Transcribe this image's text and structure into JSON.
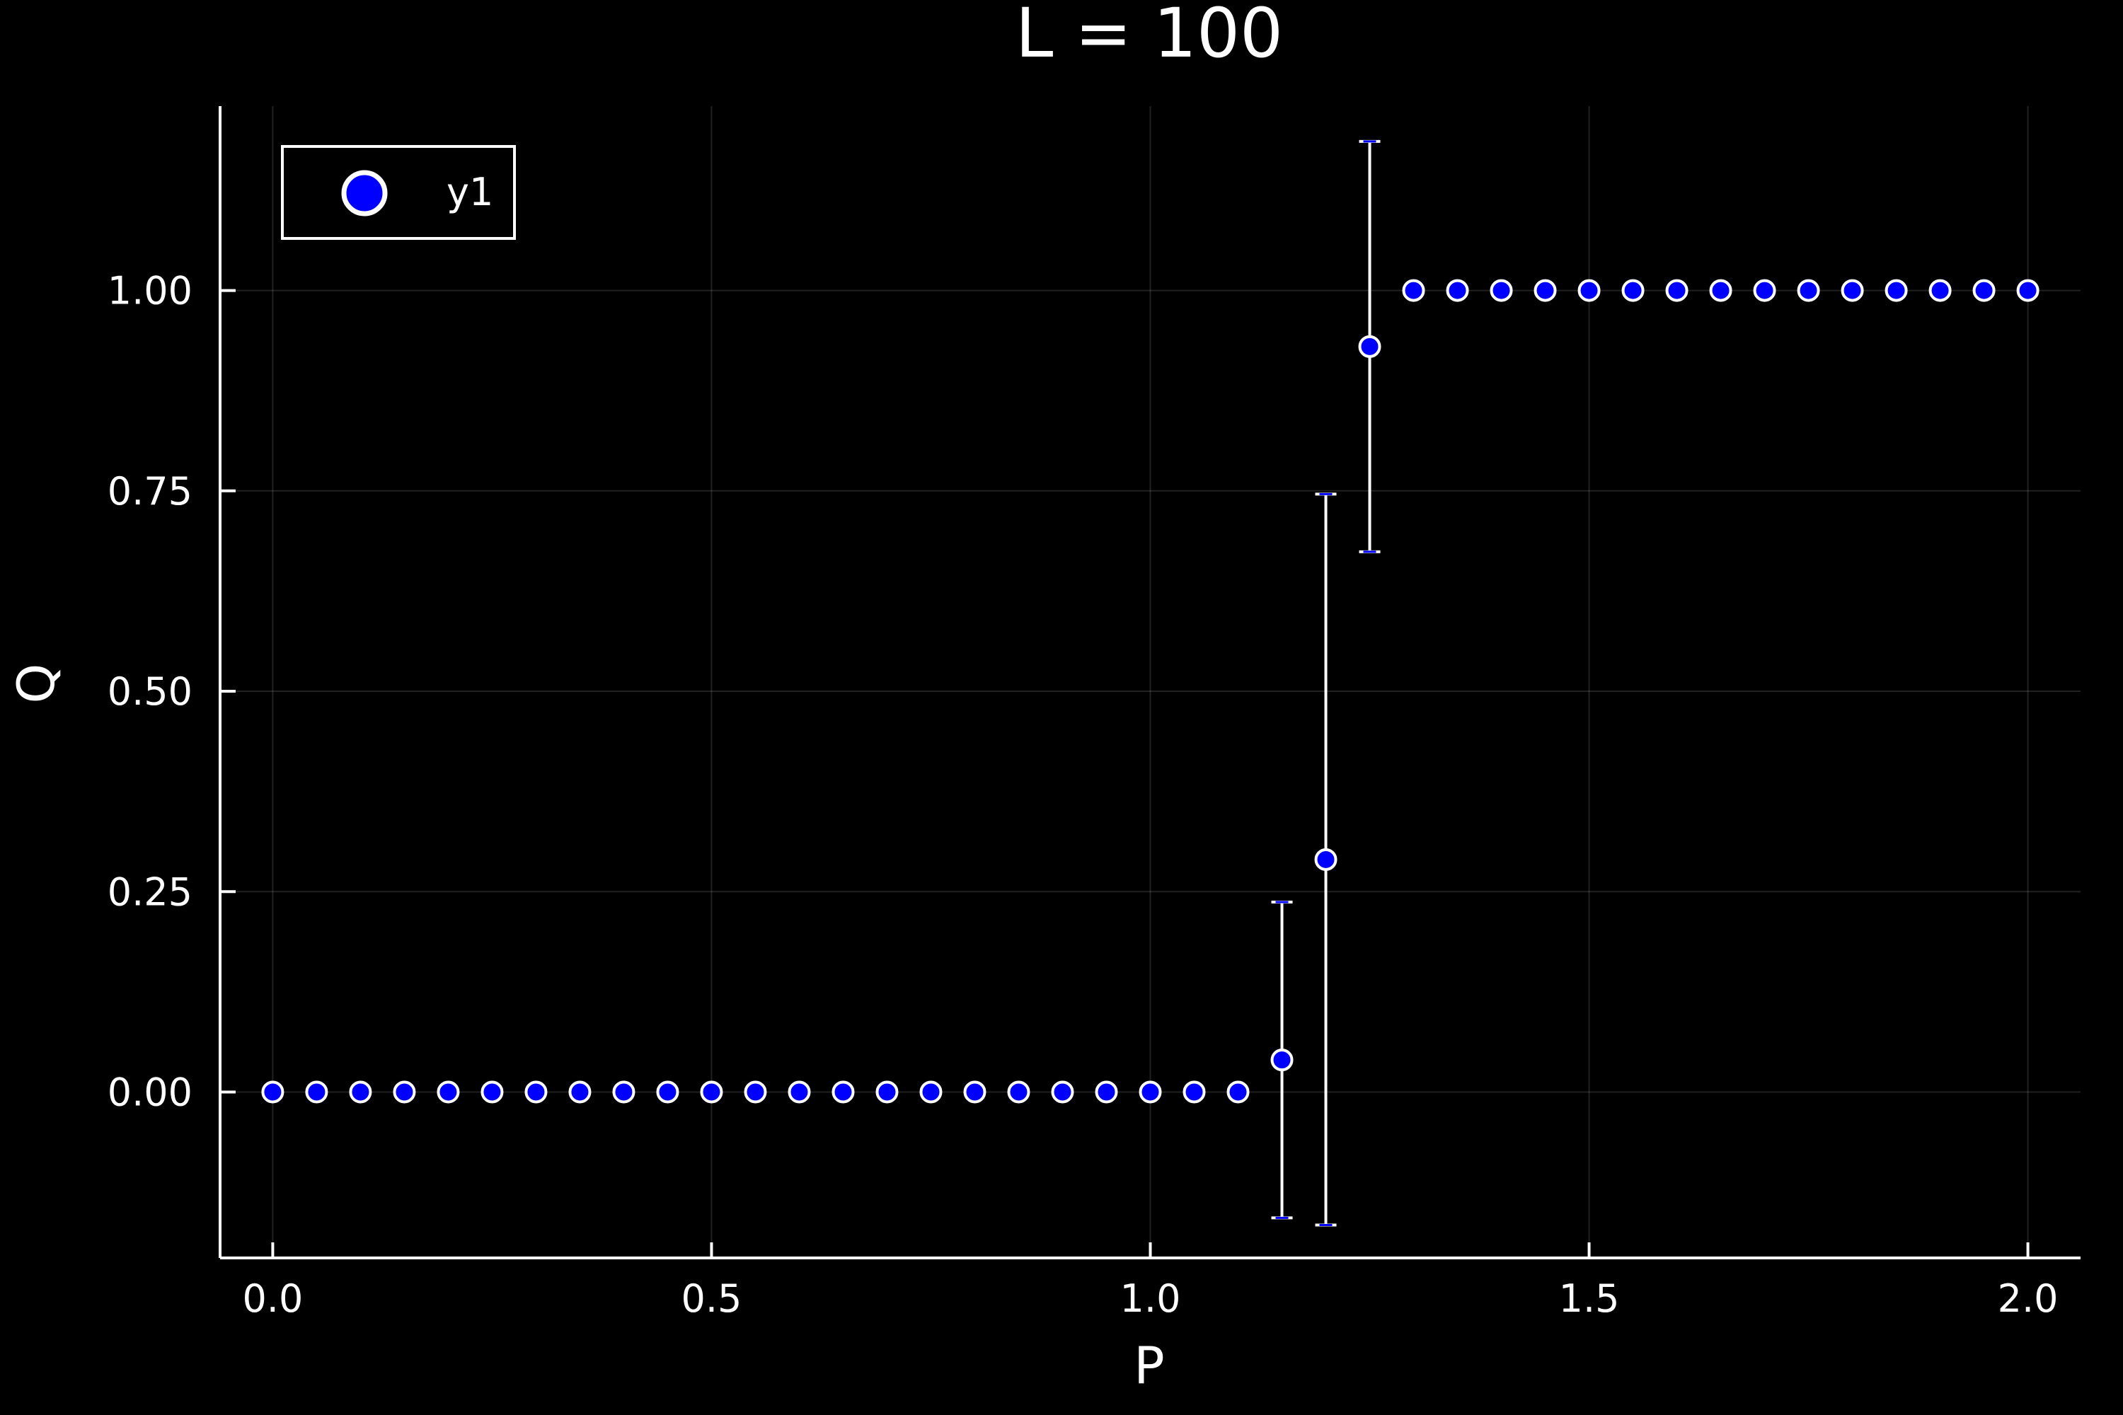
{
  "chart_data": {
    "type": "scatter",
    "title": "L = 100",
    "xlabel": "P",
    "ylabel": "Q",
    "xlim": [
      -0.06,
      2.06
    ],
    "ylim": [
      -0.207,
      1.23
    ],
    "xticks": [
      0.0,
      0.5,
      1.0,
      1.5,
      2.0
    ],
    "xtick_labels": [
      "0.0",
      "0.5",
      "1.0",
      "1.5",
      "2.0"
    ],
    "yticks": [
      0.0,
      0.25,
      0.5,
      0.75,
      1.0
    ],
    "ytick_labels": [
      "0.00",
      "0.25",
      "0.50",
      "0.75",
      "1.00"
    ],
    "grid": true,
    "legend_position": "top-left",
    "series": [
      {
        "name": "y1",
        "color": "#0000ff",
        "edge_color": "#ffffff",
        "error_bar_color": "#ffffff",
        "x": [
          0.0,
          0.05,
          0.1,
          0.15,
          0.2,
          0.25,
          0.3,
          0.35,
          0.4,
          0.45,
          0.5,
          0.55,
          0.6,
          0.65,
          0.7,
          0.75,
          0.8,
          0.85,
          0.9,
          0.95,
          1.0,
          1.05,
          1.1,
          1.15,
          1.2,
          1.25,
          1.3,
          1.35,
          1.4,
          1.45,
          1.5,
          1.55,
          1.6,
          1.65,
          1.7,
          1.75,
          1.8,
          1.85,
          1.9,
          1.95,
          2.0
        ],
        "y": [
          0,
          0,
          0,
          0,
          0,
          0,
          0,
          0,
          0,
          0,
          0,
          0,
          0,
          0,
          0,
          0,
          0,
          0,
          0,
          0,
          0,
          0,
          0,
          0.04,
          0.29,
          0.93,
          1,
          1,
          1,
          1,
          1,
          1,
          1,
          1,
          1,
          1,
          1,
          1,
          1,
          1,
          1
        ],
        "yerr": [
          0,
          0,
          0,
          0,
          0,
          0,
          0,
          0,
          0,
          0,
          0,
          0,
          0,
          0,
          0,
          0,
          0,
          0,
          0,
          0,
          0,
          0,
          0,
          0.197,
          0.456,
          0.256,
          0,
          0,
          0,
          0,
          0,
          0,
          0,
          0,
          0,
          0,
          0,
          0,
          0,
          0,
          0
        ]
      }
    ]
  }
}
